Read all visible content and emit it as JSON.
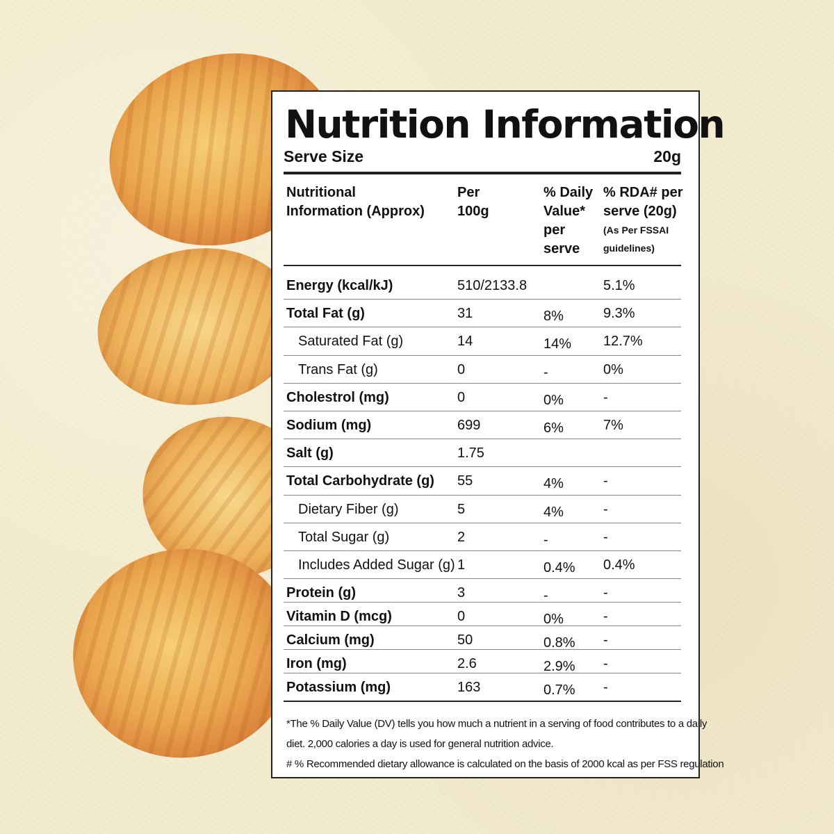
{
  "panel": {
    "title": "Nutrition Information",
    "serve_size_label": "Serve Size",
    "serve_size_value": "20g"
  },
  "headers": {
    "col0": [
      "Nutritional",
      "Information (Approx)"
    ],
    "col1": [
      "Per",
      "100g"
    ],
    "col2": [
      "% Daily",
      "Value*",
      "per",
      "serve"
    ],
    "col3": [
      "% RDA# per",
      "serve (20g)"
    ],
    "col3_small": [
      "(As Per FSSAI",
      "guidelines)"
    ]
  },
  "rows": [
    {
      "name": "Energy (kcal/kJ)",
      "bold": true,
      "indent": false,
      "per100g": "510/2133.8",
      "dv": "",
      "rda": "5.1%"
    },
    {
      "name": "Total Fat (g)",
      "bold": true,
      "indent": false,
      "per100g": "31",
      "dv": "8%",
      "rda": "9.3%"
    },
    {
      "name": "Saturated Fat (g)",
      "bold": false,
      "indent": true,
      "per100g": "14",
      "dv": "14%",
      "rda": "12.7%"
    },
    {
      "name": "Trans Fat (g)",
      "bold": false,
      "indent": true,
      "per100g": "0",
      "dv": "-",
      "rda": "0%"
    },
    {
      "name": "Cholestrol (mg)",
      "bold": true,
      "indent": false,
      "per100g": "0",
      "dv": "0%",
      "rda": "-"
    },
    {
      "name": "Sodium (mg)",
      "bold": true,
      "indent": false,
      "per100g": "699",
      "dv": "6%",
      "rda": "7%"
    },
    {
      "name": "Salt (g)",
      "bold": true,
      "indent": false,
      "per100g": "1.75",
      "dv": "",
      "rda": ""
    },
    {
      "name": "Total Carbohydrate (g)",
      "bold": true,
      "indent": false,
      "per100g": "55",
      "dv": "4%",
      "rda": "-"
    },
    {
      "name": "Dietary Fiber (g)",
      "bold": false,
      "indent": true,
      "per100g": "5",
      "dv": "4%",
      "rda": "-"
    },
    {
      "name": "Total Sugar (g)",
      "bold": false,
      "indent": true,
      "per100g": "2",
      "dv": "-",
      "rda": "-"
    },
    {
      "name": "Includes Added Sugar (g)",
      "bold": false,
      "indent": true,
      "per100g": "1",
      "dv": "0.4%",
      "rda": "0.4%"
    },
    {
      "name": "Protein (g)",
      "bold": true,
      "indent": false,
      "per100g": "3",
      "dv": "-",
      "rda": "-"
    },
    {
      "name": "Vitamin D (mcg)",
      "bold": true,
      "indent": false,
      "per100g": "0",
      "dv": "0%",
      "rda": "-"
    },
    {
      "name": "Calcium (mg)",
      "bold": true,
      "indent": false,
      "per100g": "50",
      "dv": "0.8%",
      "rda": "-"
    },
    {
      "name": "Iron (mg)",
      "bold": true,
      "indent": false,
      "per100g": "2.6",
      "dv": "2.9%",
      "rda": "-"
    },
    {
      "name": "Potassium (mg)",
      "bold": true,
      "indent": false,
      "per100g": "163",
      "dv": "0.7%",
      "rda": "-"
    }
  ],
  "footnotes": [
    "*The % Daily Value (DV) tells you how much a nutrient in a serving of food contributes to a daily",
    "diet. 2,000 calories a day is used for general nutrition advice.",
    "# % Recommended dietary allowance  is calculated on the basis of 2000 kcal as per FSS regulation"
  ],
  "colors": {
    "background": "#f3ecce",
    "chip_light": "#f1c062",
    "chip_dark": "#d9853a",
    "text": "#111111"
  }
}
